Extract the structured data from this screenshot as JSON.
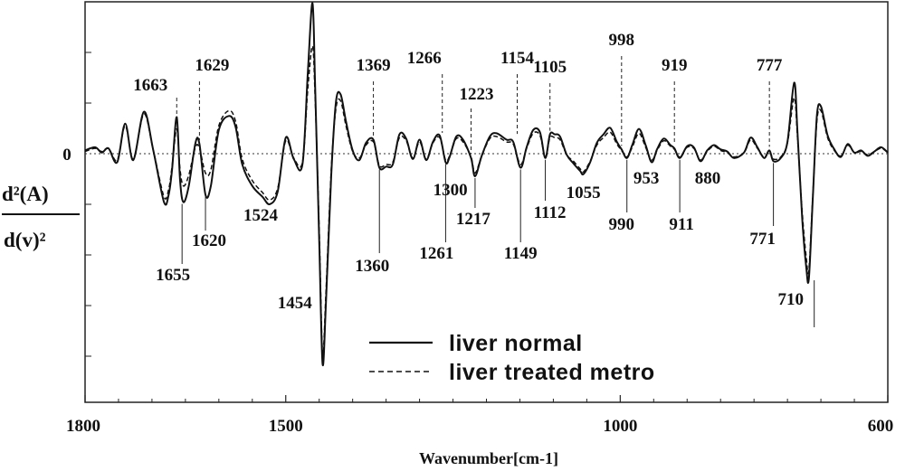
{
  "chart_data": {
    "type": "line",
    "xlabel": "Wavenumber[cm-1]",
    "ylabel_numerator": "d²(A)",
    "ylabel_denominator": "d(v)²",
    "xlim": [
      1800,
      600
    ],
    "x_ticks": [
      1800,
      1500,
      1000,
      600
    ],
    "zero_label": "0",
    "series": [
      {
        "name": "liver normal",
        "style": "solid",
        "points": [
          [
            1800,
            0.3
          ],
          [
            1785,
            0.6
          ],
          [
            1775,
            0.1
          ],
          [
            1765,
            0.5
          ],
          [
            1752,
            -0.8
          ],
          [
            1740,
            2.8
          ],
          [
            1728,
            -0.6
          ],
          [
            1712,
            3.9
          ],
          [
            1698,
            0.3
          ],
          [
            1682,
            -4.5
          ],
          [
            1675,
            -3.8
          ],
          [
            1670,
            -1.5
          ],
          [
            1663,
            3.4
          ],
          [
            1658,
            -2.5
          ],
          [
            1653,
            -4.5
          ],
          [
            1645,
            -3.0
          ],
          [
            1635,
            1.0
          ],
          [
            1629,
            0.9
          ],
          [
            1620,
            -3.8
          ],
          [
            1612,
            -3.0
          ],
          [
            1600,
            2.2
          ],
          [
            1585,
            3.5
          ],
          [
            1575,
            2.5
          ],
          [
            1565,
            -1.0
          ],
          [
            1550,
            -3.0
          ],
          [
            1535,
            -4.0
          ],
          [
            1524,
            -4.7
          ],
          [
            1512,
            -3.5
          ],
          [
            1500,
            1.5
          ],
          [
            1488,
            -0.5
          ],
          [
            1475,
            -1.0
          ],
          [
            1467,
            7.5
          ],
          [
            1460,
            14.0
          ],
          [
            1456,
            6.0
          ],
          [
            1450,
            -8.0
          ],
          [
            1445,
            -19.5
          ],
          [
            1440,
            -14.0
          ],
          [
            1432,
            -2.0
          ],
          [
            1425,
            4.8
          ],
          [
            1418,
            5.5
          ],
          [
            1410,
            3.0
          ],
          [
            1400,
            0.3
          ],
          [
            1390,
            -0.6
          ],
          [
            1380,
            1.0
          ],
          [
            1369,
            1.3
          ],
          [
            1360,
            -1.3
          ],
          [
            1350,
            -1.2
          ],
          [
            1340,
            -1.0
          ],
          [
            1330,
            1.8
          ],
          [
            1320,
            1.4
          ],
          [
            1310,
            -0.5
          ],
          [
            1300,
            1.3
          ],
          [
            1290,
            -0.6
          ],
          [
            1280,
            1.1
          ],
          [
            1270,
            1.7
          ],
          [
            1261,
            -0.8
          ],
          [
            1255,
            -0.3
          ],
          [
            1245,
            1.6
          ],
          [
            1235,
            1.3
          ],
          [
            1223,
            -0.4
          ],
          [
            1217,
            -2.1
          ],
          [
            1207,
            -0.2
          ],
          [
            1195,
            1.6
          ],
          [
            1185,
            1.9
          ],
          [
            1170,
            1.3
          ],
          [
            1160,
            1.1
          ],
          [
            1149,
            -1.3
          ],
          [
            1140,
            0.6
          ],
          [
            1130,
            2.2
          ],
          [
            1120,
            2.0
          ],
          [
            1112,
            -0.4
          ],
          [
            1105,
            1.8
          ],
          [
            1098,
            1.8
          ],
          [
            1090,
            1.6
          ],
          [
            1080,
            -0.1
          ],
          [
            1070,
            -0.9
          ],
          [
            1060,
            -1.6
          ],
          [
            1055,
            -1.9
          ],
          [
            1045,
            -0.8
          ],
          [
            1035,
            1.0
          ],
          [
            1025,
            1.8
          ],
          [
            1015,
            2.4
          ],
          [
            1005,
            1.1
          ],
          [
            998,
            0.4
          ],
          [
            990,
            -0.4
          ],
          [
            982,
            0.8
          ],
          [
            972,
            2.3
          ],
          [
            962,
            0.8
          ],
          [
            953,
            -0.8
          ],
          [
            945,
            0.4
          ],
          [
            935,
            1.4
          ],
          [
            925,
            0.8
          ],
          [
            919,
            0.5
          ],
          [
            911,
            -0.4
          ],
          [
            900,
            0.7
          ],
          [
            890,
            0.6
          ],
          [
            880,
            -0.7
          ],
          [
            870,
            0.3
          ],
          [
            860,
            0.8
          ],
          [
            850,
            0.4
          ],
          [
            840,
            0.2
          ],
          [
            830,
            -0.4
          ],
          [
            815,
            0.1
          ],
          [
            805,
            1.5
          ],
          [
            795,
            0.6
          ],
          [
            785,
            -0.4
          ],
          [
            777,
            0.3
          ],
          [
            771,
            -0.7
          ],
          [
            760,
            -0.4
          ],
          [
            750,
            1.1
          ],
          [
            740,
            6.6
          ],
          [
            735,
            2.0
          ],
          [
            728,
            -6.0
          ],
          [
            722,
            -10.5
          ],
          [
            718,
            -11.6
          ],
          [
            712,
            -4.0
          ],
          [
            706,
            3.5
          ],
          [
            700,
            4.4
          ],
          [
            690,
            1.7
          ],
          [
            680,
            0.4
          ],
          [
            670,
            -0.3
          ],
          [
            660,
            0.9
          ],
          [
            650,
            0.1
          ],
          [
            640,
            0.3
          ],
          [
            630,
            -0.2
          ],
          [
            620,
            0.2
          ],
          [
            610,
            0.6
          ],
          [
            600,
            0.1
          ]
        ]
      },
      {
        "name": "liver treated metro",
        "style": "dashed",
        "points": [
          [
            1800,
            0.2
          ],
          [
            1785,
            0.5
          ],
          [
            1775,
            0.2
          ],
          [
            1765,
            0.5
          ],
          [
            1752,
            -0.6
          ],
          [
            1740,
            2.6
          ],
          [
            1728,
            -0.5
          ],
          [
            1712,
            3.7
          ],
          [
            1698,
            0.3
          ],
          [
            1682,
            -4.0
          ],
          [
            1675,
            -3.3
          ],
          [
            1670,
            -1.2
          ],
          [
            1663,
            2.3
          ],
          [
            1658,
            -1.5
          ],
          [
            1653,
            -3.0
          ],
          [
            1645,
            -2.0
          ],
          [
            1635,
            0.6
          ],
          [
            1629,
            0.5
          ],
          [
            1620,
            -1.8
          ],
          [
            1612,
            -1.5
          ],
          [
            1600,
            2.6
          ],
          [
            1585,
            4.0
          ],
          [
            1575,
            3.0
          ],
          [
            1565,
            -0.5
          ],
          [
            1550,
            -2.5
          ],
          [
            1535,
            -3.6
          ],
          [
            1524,
            -4.3
          ],
          [
            1512,
            -3.2
          ],
          [
            1500,
            1.2
          ],
          [
            1488,
            -0.4
          ],
          [
            1475,
            -0.8
          ],
          [
            1467,
            6.0
          ],
          [
            1460,
            10.0
          ],
          [
            1456,
            5.0
          ],
          [
            1450,
            -7.0
          ],
          [
            1445,
            -18.5
          ],
          [
            1440,
            -13.0
          ],
          [
            1432,
            -1.5
          ],
          [
            1425,
            4.2
          ],
          [
            1418,
            4.9
          ],
          [
            1410,
            2.6
          ],
          [
            1400,
            0.2
          ],
          [
            1390,
            -0.4
          ],
          [
            1380,
            0.8
          ],
          [
            1369,
            1.1
          ],
          [
            1360,
            -1.1
          ],
          [
            1350,
            -1.0
          ],
          [
            1340,
            -0.8
          ],
          [
            1330,
            1.5
          ],
          [
            1320,
            1.2
          ],
          [
            1310,
            -0.4
          ],
          [
            1300,
            1.1
          ],
          [
            1290,
            -0.5
          ],
          [
            1280,
            1.0
          ],
          [
            1270,
            1.5
          ],
          [
            1261,
            -0.6
          ],
          [
            1255,
            -0.2
          ],
          [
            1245,
            1.4
          ],
          [
            1235,
            1.1
          ],
          [
            1223,
            -0.3
          ],
          [
            1217,
            -1.8
          ],
          [
            1207,
            -0.2
          ],
          [
            1195,
            1.4
          ],
          [
            1185,
            1.6
          ],
          [
            1170,
            1.1
          ],
          [
            1160,
            0.9
          ],
          [
            1149,
            -1.0
          ],
          [
            1140,
            0.5
          ],
          [
            1130,
            1.9
          ],
          [
            1120,
            1.7
          ],
          [
            1112,
            -0.3
          ],
          [
            1105,
            1.5
          ],
          [
            1098,
            1.5
          ],
          [
            1090,
            1.3
          ],
          [
            1080,
            -0.1
          ],
          [
            1070,
            -0.7
          ],
          [
            1060,
            -1.4
          ],
          [
            1055,
            -1.7
          ],
          [
            1045,
            -0.7
          ],
          [
            1035,
            0.8
          ],
          [
            1025,
            1.5
          ],
          [
            1015,
            2.0
          ],
          [
            1005,
            0.9
          ],
          [
            998,
            0.3
          ],
          [
            990,
            -0.3
          ],
          [
            982,
            0.6
          ],
          [
            972,
            1.9
          ],
          [
            962,
            0.6
          ],
          [
            953,
            -0.6
          ],
          [
            945,
            0.3
          ],
          [
            935,
            1.2
          ],
          [
            925,
            0.7
          ],
          [
            919,
            0.4
          ],
          [
            911,
            -0.3
          ],
          [
            900,
            0.6
          ],
          [
            890,
            0.5
          ],
          [
            880,
            -0.6
          ],
          [
            870,
            0.2
          ],
          [
            860,
            0.7
          ],
          [
            850,
            0.3
          ],
          [
            840,
            0.1
          ],
          [
            830,
            -0.3
          ],
          [
            815,
            0.1
          ],
          [
            805,
            1.3
          ],
          [
            795,
            0.5
          ],
          [
            785,
            -0.3
          ],
          [
            777,
            0.2
          ],
          [
            771,
            -0.5
          ],
          [
            760,
            -0.3
          ],
          [
            750,
            1.0
          ],
          [
            740,
            5.2
          ],
          [
            735,
            1.5
          ],
          [
            728,
            -5.4
          ],
          [
            722,
            -9.6
          ],
          [
            718,
            -10.8
          ],
          [
            712,
            -3.8
          ],
          [
            706,
            3.0
          ],
          [
            700,
            4.0
          ],
          [
            690,
            1.5
          ],
          [
            680,
            0.3
          ],
          [
            670,
            -0.2
          ],
          [
            660,
            0.8
          ],
          [
            650,
            0.1
          ],
          [
            640,
            0.2
          ],
          [
            630,
            -0.1
          ],
          [
            620,
            0.2
          ],
          [
            610,
            0.5
          ],
          [
            600,
            0.1
          ]
        ]
      }
    ],
    "annotations_above": [
      {
        "label": "1663",
        "x": 1663,
        "level": 3.3
      },
      {
        "label": "1629",
        "x": 1629,
        "level": 0.9
      },
      {
        "label": "1369",
        "x": 1369,
        "level": 1.3
      },
      {
        "label": "1266",
        "x": 1266,
        "level": 1.6
      },
      {
        "label": "1223",
        "x": 1223,
        "level": -0.3
      },
      {
        "label": "1154",
        "x": 1154,
        "level": 1.5
      },
      {
        "label": "1105",
        "x": 1105,
        "level": 1.8
      },
      {
        "label": "998",
        "x": 998,
        "level": 0.4
      },
      {
        "label": "919",
        "x": 919,
        "level": 0.5
      },
      {
        "label": "777",
        "x": 777,
        "level": 0.3
      }
    ],
    "annotations_below": [
      {
        "label": "1655",
        "x": 1655,
        "level": -4.5
      },
      {
        "label": "1620",
        "x": 1620,
        "level": -3.8
      },
      {
        "label": "1524",
        "x": 1524,
        "level": -4.7
      },
      {
        "label": "1454",
        "x": 1454,
        "level": -19.5
      },
      {
        "label": "1360",
        "x": 1360,
        "level": -1.3
      },
      {
        "label": "1300",
        "x": 1300,
        "level": 1.3
      },
      {
        "label": "1261",
        "x": 1261,
        "level": -0.8
      },
      {
        "label": "1217",
        "x": 1217,
        "level": -2.1
      },
      {
        "label": "1149",
        "x": 1149,
        "level": -1.3
      },
      {
        "label": "1112",
        "x": 1112,
        "level": -0.4
      },
      {
        "label": "1055",
        "x": 1055,
        "level": -1.9
      },
      {
        "label": "990",
        "x": 990,
        "level": -0.4
      },
      {
        "label": "953",
        "x": 953,
        "level": -0.8
      },
      {
        "label": "911",
        "x": 911,
        "level": -0.4
      },
      {
        "label": "880",
        "x": 880,
        "level": -0.7
      },
      {
        "label": "771",
        "x": 771,
        "level": -0.7
      },
      {
        "label": "710",
        "x": 710,
        "level": -11.6
      }
    ],
    "legend": {
      "placement": "bottom-center",
      "items": [
        {
          "label": "liver normal",
          "style": "solid"
        },
        {
          "label": "liver treated metro",
          "style": "dashed"
        }
      ]
    },
    "grid": false
  }
}
